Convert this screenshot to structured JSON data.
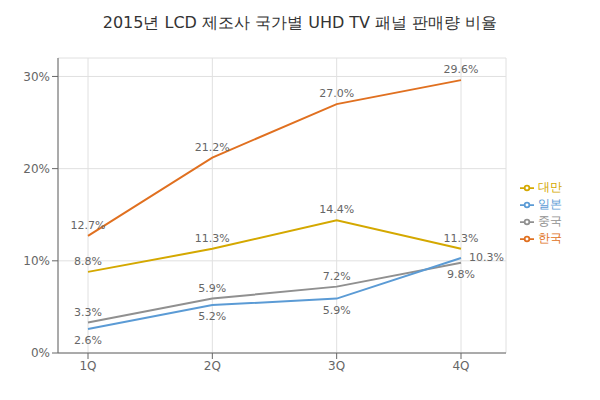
{
  "chart_data": {
    "type": "line",
    "title": "2015년 LCD 제조사 국가별 UHD TV 패널 판매량 비율",
    "categories": [
      "1Q",
      "2Q",
      "3Q",
      "4Q"
    ],
    "series": [
      {
        "name": "한국",
        "color": "#e07020",
        "values": [
          12.7,
          21.2,
          27.0,
          29.6
        ],
        "value_labels": [
          "12.7%",
          "21.2%",
          "27.0%",
          "29.6%"
        ]
      },
      {
        "name": "중국",
        "color": "#909090",
        "values": [
          3.3,
          5.9,
          7.2,
          9.8
        ],
        "value_labels": [
          "3.3%",
          "5.9%",
          "7.2%",
          "9.8%"
        ]
      },
      {
        "name": "대만",
        "color": "#d4a800",
        "values": [
          8.8,
          11.3,
          14.4,
          11.3
        ],
        "value_labels": [
          "8.8%",
          "11.3%",
          "14.4%",
          "11.3%"
        ]
      },
      {
        "name": "일본",
        "color": "#5b9bd5",
        "values": [
          2.6,
          5.2,
          5.9,
          10.3
        ],
        "value_labels": [
          "2.6%",
          "5.2%",
          "5.9%",
          "10.3%"
        ]
      }
    ],
    "ylim": [
      0,
      32
    ],
    "yticks": [
      {
        "value": 0,
        "label": "0%"
      },
      {
        "value": 10,
        "label": "10%"
      },
      {
        "value": 20,
        "label": "20%"
      },
      {
        "value": 30,
        "label": "30%"
      }
    ],
    "grid": true,
    "legend": "right",
    "data_labels": true
  }
}
